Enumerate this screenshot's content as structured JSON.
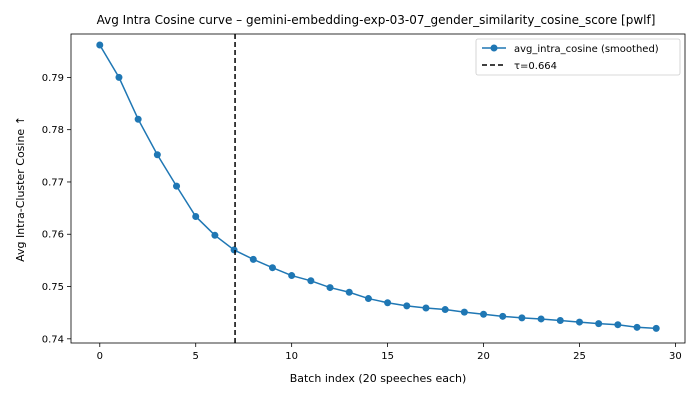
{
  "chart_data": {
    "type": "line",
    "title": "Avg Intra Cosine curve – gemini-embedding-exp-03-07_gender_similarity_cosine_score [pwlf]",
    "xlabel": "Batch index (20 speeches each)",
    "ylabel": "Avg Intra-Cluster Cosine ↑",
    "xlim": [
      -1.5,
      30.5
    ],
    "ylim": [
      0.7392,
      0.7983
    ],
    "xticks": [
      0,
      5,
      10,
      15,
      20,
      25,
      30
    ],
    "yticks": [
      0.74,
      0.75,
      0.76,
      0.77,
      0.78,
      0.79
    ],
    "ytick_labels": [
      "0.74",
      "0.75",
      "0.76",
      "0.77",
      "0.78",
      "0.79"
    ],
    "grid": false,
    "legend_position": "top-right",
    "series": [
      {
        "name": "avg_intra_cosine (smoothed)",
        "color": "#1f77b4",
        "marker": "circle",
        "x": [
          0,
          1,
          2,
          3,
          4,
          5,
          6,
          7,
          8,
          9,
          10,
          11,
          12,
          13,
          14,
          15,
          16,
          17,
          18,
          19,
          20,
          21,
          22,
          23,
          24,
          25,
          26,
          27,
          28,
          29
        ],
        "y": [
          0.7962,
          0.79,
          0.782,
          0.7752,
          0.7692,
          0.7634,
          0.7598,
          0.757,
          0.7552,
          0.7536,
          0.7521,
          0.7511,
          0.7498,
          0.7489,
          0.7477,
          0.7469,
          0.7463,
          0.7459,
          0.7456,
          0.7451,
          0.7447,
          0.7443,
          0.744,
          0.7438,
          0.7435,
          0.7432,
          0.7429,
          0.7427,
          0.7422,
          0.742
        ]
      }
    ],
    "vline": {
      "name": "τ=0.664",
      "x": 7.05,
      "color": "#000000",
      "style": "dashed"
    }
  }
}
